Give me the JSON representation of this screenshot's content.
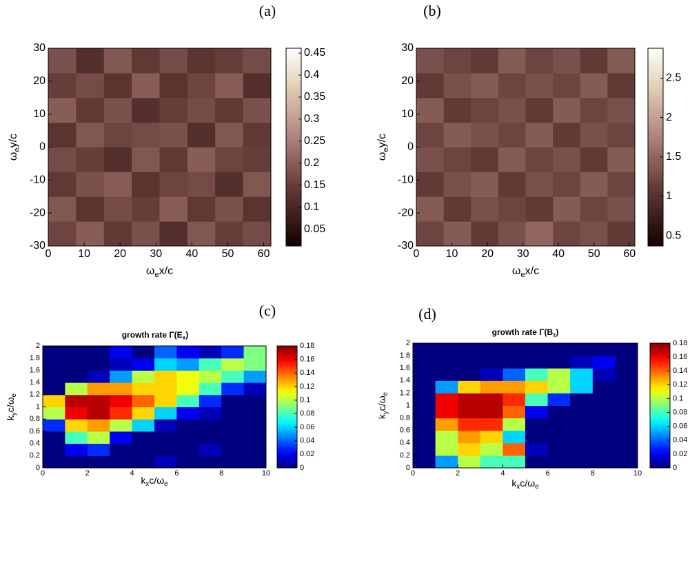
{
  "chart_data": [
    {
      "type": "heatmap",
      "label": "(a)",
      "colormap": "pink",
      "xlabel": [
        "ω",
        "e",
        "x/c"
      ],
      "ylabel": [
        "ω",
        "e",
        "y/c"
      ],
      "xlim": [
        0,
        62
      ],
      "ylim": [
        -30,
        30
      ],
      "xticks": [
        0,
        10,
        20,
        30,
        40,
        50,
        60
      ],
      "yticks": [
        -30,
        -20,
        -10,
        0,
        10,
        20,
        30
      ],
      "clim": [
        0.012,
        0.461
      ],
      "cticks": [
        0.05,
        0.1,
        0.15,
        0.2,
        0.25,
        0.3,
        0.35,
        0.4,
        0.45
      ],
      "values": [
        [
          0.16,
          0.2,
          0.14,
          0.18,
          0.12,
          0.19,
          0.15,
          0.17
        ],
        [
          0.19,
          0.13,
          0.17,
          0.15,
          0.2,
          0.14,
          0.18,
          0.13
        ],
        [
          0.14,
          0.18,
          0.2,
          0.13,
          0.16,
          0.17,
          0.12,
          0.19
        ],
        [
          0.17,
          0.15,
          0.12,
          0.19,
          0.14,
          0.2,
          0.16,
          0.15
        ],
        [
          0.13,
          0.19,
          0.16,
          0.17,
          0.18,
          0.12,
          0.19,
          0.14
        ],
        [
          0.2,
          0.14,
          0.18,
          0.12,
          0.15,
          0.17,
          0.14,
          0.18
        ],
        [
          0.15,
          0.17,
          0.13,
          0.2,
          0.13,
          0.16,
          0.2,
          0.12
        ],
        [
          0.18,
          0.12,
          0.19,
          0.14,
          0.17,
          0.13,
          0.15,
          0.17
        ]
      ]
    },
    {
      "type": "heatmap",
      "label": "(b)",
      "colormap": "pink",
      "xlabel": [
        "ω",
        "e",
        "x/c"
      ],
      "ylabel": [
        "ω",
        "e",
        "y/c"
      ],
      "xlim": [
        0,
        61.5
      ],
      "ylim": [
        -30,
        30
      ],
      "xticks": [
        0,
        10,
        20,
        30,
        40,
        50,
        60
      ],
      "yticks": [
        -30,
        -20,
        -10,
        0,
        10,
        20,
        30
      ],
      "clim": [
        0.37,
        2.88
      ],
      "cticks": [
        0.5,
        1,
        1.5,
        2,
        2.5
      ],
      "values": [
        [
          1.2,
          1.4,
          1.1,
          1.3,
          1.5,
          1.2,
          1.3,
          1.1
        ],
        [
          1.4,
          1.1,
          1.3,
          1.2,
          1.1,
          1.4,
          1.2,
          1.3
        ],
        [
          1.1,
          1.3,
          1.4,
          1.1,
          1.3,
          1.2,
          1.4,
          1.2
        ],
        [
          1.3,
          1.2,
          1.1,
          1.4,
          1.2,
          1.3,
          1.1,
          1.4
        ],
        [
          1.2,
          1.4,
          1.3,
          1.2,
          1.4,
          1.1,
          1.3,
          1.2
        ],
        [
          1.4,
          1.1,
          1.2,
          1.3,
          1.1,
          1.4,
          1.2,
          1.3
        ],
        [
          1.1,
          1.3,
          1.4,
          1.2,
          1.3,
          1.2,
          1.4,
          1.1
        ],
        [
          1.3,
          1.2,
          1.1,
          1.4,
          1.2,
          1.3,
          1.1,
          1.4
        ]
      ]
    },
    {
      "type": "heatmap",
      "label": "(c)",
      "colormap": "jet",
      "title": [
        "growth rate Γ(E",
        "x",
        ")"
      ],
      "xlabel": [
        "k",
        "x",
        "c/ω",
        "e"
      ],
      "ylabel": [
        "k",
        "y",
        "c/ω",
        "e"
      ],
      "xlim": [
        0,
        10
      ],
      "ylim": [
        0,
        2
      ],
      "xticks": [
        0,
        2,
        4,
        6,
        8,
        10
      ],
      "yticks": [
        0,
        0.2,
        0.4,
        0.6,
        0.8,
        1,
        1.2,
        1.4,
        1.6,
        1.8,
        2
      ],
      "clim": [
        0,
        0.18
      ],
      "cticks": [
        0,
        0.02,
        0.04,
        0.06,
        0.08,
        0.1,
        0.12,
        0.14,
        0.16,
        0.18
      ],
      "values": [
        [
          0,
          0,
          0,
          0,
          0,
          0.01,
          0,
          0,
          0,
          0
        ],
        [
          0,
          0.02,
          0.03,
          0,
          0,
          0,
          0,
          0.01,
          0,
          0
        ],
        [
          0,
          0.08,
          0.1,
          0.02,
          0,
          0,
          0,
          0,
          0,
          0
        ],
        [
          0.03,
          0.12,
          0.13,
          0.1,
          0.06,
          0.01,
          0,
          0,
          0,
          0
        ],
        [
          0.1,
          0.16,
          0.17,
          0.15,
          0.12,
          0.06,
          0.02,
          0.01,
          0,
          0
        ],
        [
          0.12,
          0.17,
          0.17,
          0.16,
          0.14,
          0.12,
          0.08,
          0.03,
          0,
          0
        ],
        [
          0,
          0.1,
          0.13,
          0.13,
          0.12,
          0.12,
          0.11,
          0.08,
          0.03,
          0.01
        ],
        [
          0,
          0,
          0.01,
          0.05,
          0.1,
          0.12,
          0.11,
          0.1,
          0.08,
          0.05
        ],
        [
          0,
          0,
          0,
          0.01,
          0.02,
          0.06,
          0.05,
          0.08,
          0.1,
          0.09
        ],
        [
          0,
          0,
          0,
          0.02,
          0,
          0.04,
          0.02,
          0.01,
          0.03,
          0.09
        ]
      ]
    },
    {
      "type": "heatmap",
      "label": "(d)",
      "colormap": "jet",
      "title": [
        "growth rate Γ(B",
        "z",
        ")"
      ],
      "xlabel": [
        "k",
        "x",
        "c/ω",
        "e"
      ],
      "ylabel": [
        "k",
        "y",
        "c/ω",
        "e"
      ],
      "xlim": [
        0,
        10
      ],
      "ylim": [
        0,
        2
      ],
      "xticks": [
        0,
        2,
        4,
        6,
        8,
        10
      ],
      "yticks": [
        0,
        0.2,
        0.4,
        0.6,
        0.8,
        1,
        1.2,
        1.4,
        1.6,
        1.8,
        2
      ],
      "clim": [
        0,
        0.18
      ],
      "cticks": [
        0,
        0.02,
        0.04,
        0.06,
        0.08,
        0.1,
        0.12,
        0.14,
        0.16,
        0.18
      ],
      "values": [
        [
          0,
          0.05,
          0.1,
          0.08,
          0.08,
          0,
          0,
          0,
          0,
          0
        ],
        [
          0,
          0.1,
          0.12,
          0.1,
          0.14,
          0.01,
          0,
          0,
          0,
          0
        ],
        [
          0,
          0.1,
          0.13,
          0.12,
          0.06,
          0,
          0,
          0,
          0,
          0
        ],
        [
          0,
          0.13,
          0.15,
          0.15,
          0.1,
          0,
          0,
          0,
          0,
          0
        ],
        [
          0,
          0.16,
          0.17,
          0.17,
          0.14,
          0.02,
          0,
          0,
          0,
          0
        ],
        [
          0,
          0.16,
          0.17,
          0.17,
          0.15,
          0.08,
          0.03,
          0,
          0,
          0
        ],
        [
          0,
          0.05,
          0.12,
          0.13,
          0.13,
          0.12,
          0.1,
          0.06,
          0,
          0
        ],
        [
          0,
          0,
          0,
          0.01,
          0.04,
          0.08,
          0.1,
          0.06,
          0.01,
          0
        ],
        [
          0,
          0,
          0,
          0,
          0,
          0,
          0,
          0.01,
          0.02,
          0
        ],
        [
          0,
          0,
          0,
          0,
          0,
          0,
          0,
          0,
          0,
          0
        ]
      ]
    }
  ]
}
